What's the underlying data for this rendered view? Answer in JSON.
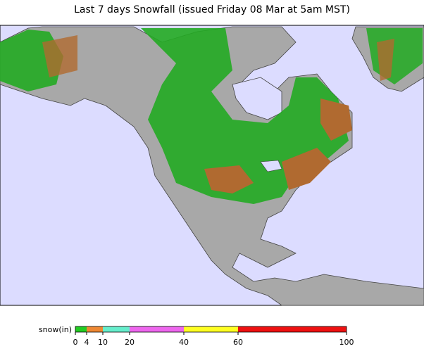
{
  "title": "Last 7 days Snowfall (issued Friday 08 Mar at 5am MST)",
  "legend": {
    "label": "snow(in)",
    "ticks": [
      0,
      4,
      10,
      20,
      40,
      60,
      100
    ],
    "colors": [
      "#22cc22",
      "#ee8833",
      "#66eecc",
      "#ee66ee",
      "#ffff22",
      "#ee1111"
    ]
  }
}
